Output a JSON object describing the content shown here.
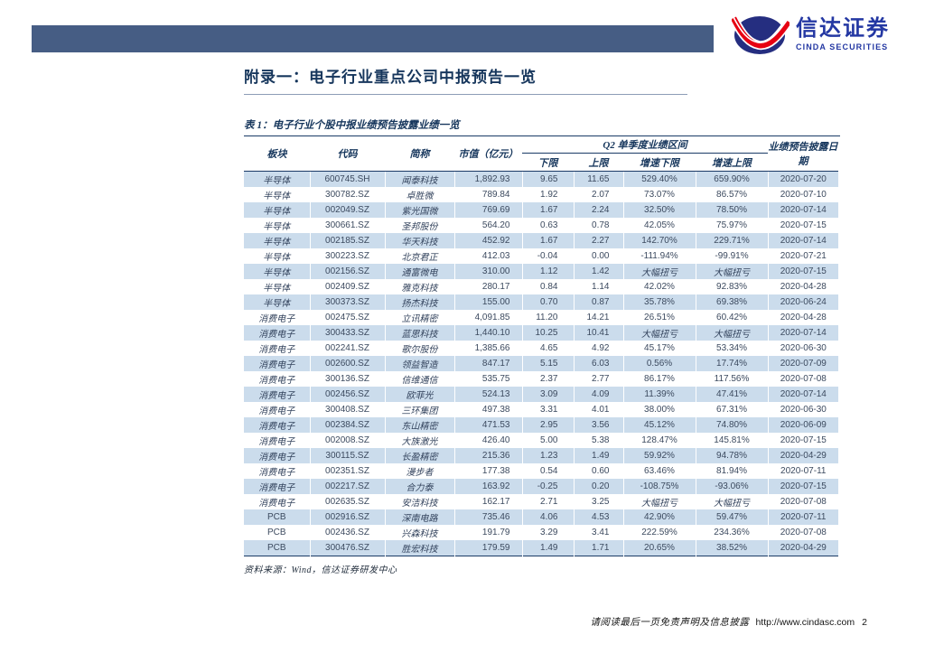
{
  "logo": {
    "cn": "信达证券",
    "en": "CINDA SECURITIES"
  },
  "title": "附录一：电子行业重点公司中报预告一览",
  "table": {
    "caption": "表 1：电子行业个股中报业绩预告披露业绩一览",
    "group_header": "Q2 单季度业绩区间",
    "columns": [
      "板块",
      "代码",
      "简称",
      "市值（亿元）",
      "下限",
      "上限",
      "增速下限",
      "增速上限",
      "业绩预告披露日期"
    ],
    "rows": [
      [
        "半导体",
        "600745.SH",
        "闻泰科技",
        "1,892.93",
        "9.65",
        "11.65",
        "529.40%",
        "659.90%",
        "2020-07-20"
      ],
      [
        "半导体",
        "300782.SZ",
        "卓胜微",
        "789.84",
        "1.92",
        "2.07",
        "73.07%",
        "86.57%",
        "2020-07-10"
      ],
      [
        "半导体",
        "002049.SZ",
        "紫光国微",
        "769.69",
        "1.67",
        "2.24",
        "32.50%",
        "78.50%",
        "2020-07-14"
      ],
      [
        "半导体",
        "300661.SZ",
        "圣邦股份",
        "564.20",
        "0.63",
        "0.78",
        "42.05%",
        "75.97%",
        "2020-07-15"
      ],
      [
        "半导体",
        "002185.SZ",
        "华天科技",
        "452.92",
        "1.67",
        "2.27",
        "142.70%",
        "229.71%",
        "2020-07-14"
      ],
      [
        "半导体",
        "300223.SZ",
        "北京君正",
        "412.03",
        "-0.04",
        "0.00",
        "-111.94%",
        "-99.91%",
        "2020-07-21"
      ],
      [
        "半导体",
        "002156.SZ",
        "通富微电",
        "310.00",
        "1.12",
        "1.42",
        "大幅扭亏",
        "大幅扭亏",
        "2020-07-15"
      ],
      [
        "半导体",
        "002409.SZ",
        "雅克科技",
        "280.17",
        "0.84",
        "1.14",
        "42.02%",
        "92.83%",
        "2020-04-28"
      ],
      [
        "半导体",
        "300373.SZ",
        "扬杰科技",
        "155.00",
        "0.70",
        "0.87",
        "35.78%",
        "69.38%",
        "2020-06-24"
      ],
      [
        "消费电子",
        "002475.SZ",
        "立讯精密",
        "4,091.85",
        "11.20",
        "14.21",
        "26.51%",
        "60.42%",
        "2020-04-28"
      ],
      [
        "消费电子",
        "300433.SZ",
        "蓝思科技",
        "1,440.10",
        "10.25",
        "10.41",
        "大幅扭亏",
        "大幅扭亏",
        "2020-07-14"
      ],
      [
        "消费电子",
        "002241.SZ",
        "歌尔股份",
        "1,385.66",
        "4.65",
        "4.92",
        "45.17%",
        "53.34%",
        "2020-06-30"
      ],
      [
        "消费电子",
        "002600.SZ",
        "领益智造",
        "847.17",
        "5.15",
        "6.03",
        "0.56%",
        "17.74%",
        "2020-07-09"
      ],
      [
        "消费电子",
        "300136.SZ",
        "信维通信",
        "535.75",
        "2.37",
        "2.77",
        "86.17%",
        "117.56%",
        "2020-07-08"
      ],
      [
        "消费电子",
        "002456.SZ",
        "欧菲光",
        "524.13",
        "3.09",
        "4.09",
        "11.39%",
        "47.41%",
        "2020-07-14"
      ],
      [
        "消费电子",
        "300408.SZ",
        "三环集团",
        "497.38",
        "3.31",
        "4.01",
        "38.00%",
        "67.31%",
        "2020-06-30"
      ],
      [
        "消费电子",
        "002384.SZ",
        "东山精密",
        "471.53",
        "2.95",
        "3.56",
        "45.12%",
        "74.80%",
        "2020-06-09"
      ],
      [
        "消费电子",
        "002008.SZ",
        "大族激光",
        "426.40",
        "5.00",
        "5.38",
        "128.47%",
        "145.81%",
        "2020-07-15"
      ],
      [
        "消费电子",
        "300115.SZ",
        "长盈精密",
        "215.36",
        "1.23",
        "1.49",
        "59.92%",
        "94.78%",
        "2020-04-29"
      ],
      [
        "消费电子",
        "002351.SZ",
        "漫步者",
        "177.38",
        "0.54",
        "0.60",
        "63.46%",
        "81.94%",
        "2020-07-11"
      ],
      [
        "消费电子",
        "002217.SZ",
        "合力泰",
        "163.92",
        "-0.25",
        "0.20",
        "-108.75%",
        "-93.06%",
        "2020-07-15"
      ],
      [
        "消费电子",
        "002635.SZ",
        "安洁科技",
        "162.17",
        "2.71",
        "3.25",
        "大幅扭亏",
        "大幅扭亏",
        "2020-07-08"
      ],
      [
        "PCB",
        "002916.SZ",
        "深南电路",
        "735.46",
        "4.06",
        "4.53",
        "42.90%",
        "59.47%",
        "2020-07-11"
      ],
      [
        "PCB",
        "002436.SZ",
        "兴森科技",
        "191.79",
        "3.29",
        "3.41",
        "222.59%",
        "234.36%",
        "2020-07-08"
      ],
      [
        "PCB",
        "300476.SZ",
        "胜宏科技",
        "179.59",
        "1.49",
        "1.71",
        "20.65%",
        "38.52%",
        "2020-04-29"
      ]
    ],
    "source": "资料来源：Wind，信达证券研发中心"
  },
  "footer": {
    "disclaimer": "请阅读最后一页免责声明及信息披露",
    "url": "http://www.cindasc.com",
    "page_number": "2"
  },
  "colors": {
    "banner_blue": "#465d84",
    "navy_text": "#16365c",
    "row_blue": "#cbdcec",
    "logo_blue": "#2438a3",
    "logo_red": "#e60012"
  }
}
